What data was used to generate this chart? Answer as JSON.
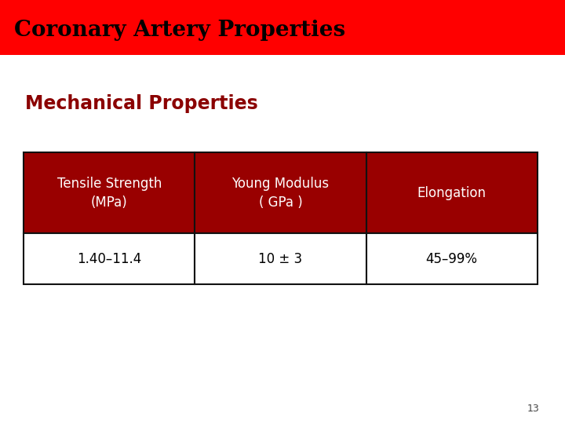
{
  "title": "Coronary Artery Properties",
  "subtitle": "Mechanical Properties",
  "title_bg_color": "#FF0000",
  "title_text_color": "#000000",
  "subtitle_text_color": "#8B0000",
  "header_bg_color": "#990000",
  "header_text_color": "#FFFFFF",
  "data_bg_color": "#FFFFFF",
  "data_text_color": "#000000",
  "table_border_color": "#111111",
  "bg_color": "#FFFFFF",
  "col_headers_line1": [
    "Tensile Strength",
    "Young Modulus",
    "Elongation"
  ],
  "col_headers_line2": [
    "(MPa)",
    "( GPa )",
    ""
  ],
  "data_row": [
    "1.40–11.4",
    "10 ± 3",
    "45–99%"
  ],
  "page_number": "13",
  "title_fontsize": 20,
  "subtitle_fontsize": 17,
  "header_fontsize": 12,
  "data_fontsize": 12,
  "page_num_fontsize": 9
}
